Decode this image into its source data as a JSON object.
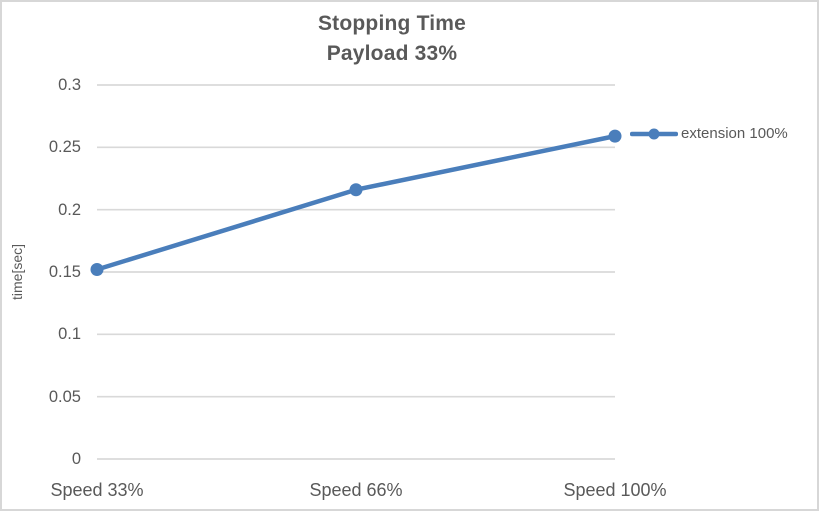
{
  "chart_data": {
    "type": "line",
    "title": "Stopping Time",
    "subtitle": "Payload 33%",
    "categories": [
      "Speed 33%",
      "Speed 66%",
      "Speed 100%"
    ],
    "series": [
      {
        "name": "extension 100%",
        "values": [
          0.152,
          0.216,
          0.259
        ],
        "color": "#4A7EBB",
        "marker": "circle"
      }
    ],
    "xlabel": "",
    "ylabel": "time[sec]",
    "ylim": [
      0,
      0.3
    ],
    "ytick_step": 0.05,
    "ytick_labels": [
      "0",
      "0.05",
      "0.1",
      "0.15",
      "0.2",
      "0.25",
      "0.3"
    ],
    "grid": "horizontal",
    "legend_position": "right-of-last-point",
    "colors": {
      "text": "#595959",
      "gridline": "#D9D9D9",
      "border": "#D7D7D7",
      "background": "#FFFFFF"
    }
  }
}
